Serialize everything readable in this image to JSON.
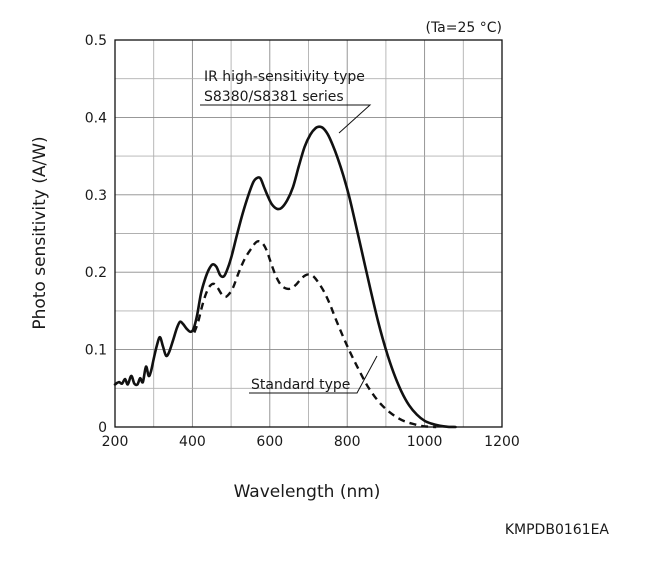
{
  "chart_data": {
    "type": "line",
    "condition": "(Ta=25 °C)",
    "xlabel": "Wavelength (nm)",
    "ylabel": "Photo sensitivity (A/W)",
    "xlim": [
      200,
      1200
    ],
    "ylim": [
      0,
      0.5
    ],
    "x_ticks": [
      "200",
      "400",
      "600",
      "800",
      "1000",
      "1200"
    ],
    "y_ticks": [
      "0",
      "0.1",
      "0.2",
      "0.3",
      "0.4",
      "0.5"
    ],
    "grid": true,
    "series": [
      {
        "name": "IR high-sensitivity type S8380/S8381 series",
        "style": "solid",
        "color": "#111111",
        "points": [
          [
            200,
            0.055
          ],
          [
            210,
            0.058
          ],
          [
            218,
            0.056
          ],
          [
            226,
            0.062
          ],
          [
            233,
            0.055
          ],
          [
            242,
            0.066
          ],
          [
            250,
            0.056
          ],
          [
            258,
            0.055
          ],
          [
            265,
            0.063
          ],
          [
            272,
            0.058
          ],
          [
            280,
            0.078
          ],
          [
            287,
            0.066
          ],
          [
            293,
            0.072
          ],
          [
            300,
            0.088
          ],
          [
            308,
            0.105
          ],
          [
            316,
            0.116
          ],
          [
            324,
            0.104
          ],
          [
            332,
            0.092
          ],
          [
            340,
            0.097
          ],
          [
            350,
            0.112
          ],
          [
            360,
            0.128
          ],
          [
            368,
            0.136
          ],
          [
            376,
            0.133
          ],
          [
            385,
            0.127
          ],
          [
            395,
            0.123
          ],
          [
            403,
            0.127
          ],
          [
            412,
            0.144
          ],
          [
            422,
            0.172
          ],
          [
            432,
            0.19
          ],
          [
            442,
            0.203
          ],
          [
            452,
            0.21
          ],
          [
            462,
            0.207
          ],
          [
            472,
            0.196
          ],
          [
            482,
            0.195
          ],
          [
            492,
            0.206
          ],
          [
            502,
            0.222
          ],
          [
            515,
            0.248
          ],
          [
            530,
            0.276
          ],
          [
            545,
            0.3
          ],
          [
            558,
            0.317
          ],
          [
            568,
            0.322
          ],
          [
            576,
            0.321
          ],
          [
            585,
            0.31
          ],
          [
            595,
            0.298
          ],
          [
            605,
            0.288
          ],
          [
            618,
            0.282
          ],
          [
            630,
            0.283
          ],
          [
            645,
            0.293
          ],
          [
            660,
            0.31
          ],
          [
            675,
            0.337
          ],
          [
            690,
            0.362
          ],
          [
            705,
            0.378
          ],
          [
            718,
            0.386
          ],
          [
            728,
            0.388
          ],
          [
            738,
            0.386
          ],
          [
            750,
            0.378
          ],
          [
            762,
            0.365
          ],
          [
            775,
            0.348
          ],
          [
            790,
            0.325
          ],
          [
            805,
            0.298
          ],
          [
            820,
            0.266
          ],
          [
            840,
            0.222
          ],
          [
            860,
            0.178
          ],
          [
            880,
            0.136
          ],
          [
            900,
            0.1
          ],
          [
            920,
            0.07
          ],
          [
            940,
            0.046
          ],
          [
            960,
            0.028
          ],
          [
            980,
            0.016
          ],
          [
            1000,
            0.008
          ],
          [
            1020,
            0.004
          ],
          [
            1040,
            0.0015
          ],
          [
            1060,
            0.0003
          ],
          [
            1080,
            0
          ]
        ]
      },
      {
        "name": "Standard type",
        "style": "dashed",
        "color": "#111111",
        "points": [
          [
            405,
            0.122
          ],
          [
            415,
            0.136
          ],
          [
            425,
            0.156
          ],
          [
            435,
            0.172
          ],
          [
            445,
            0.182
          ],
          [
            455,
            0.185
          ],
          [
            465,
            0.18
          ],
          [
            475,
            0.172
          ],
          [
            485,
            0.168
          ],
          [
            495,
            0.172
          ],
          [
            505,
            0.18
          ],
          [
            520,
            0.2
          ],
          [
            535,
            0.217
          ],
          [
            550,
            0.229
          ],
          [
            563,
            0.238
          ],
          [
            572,
            0.24
          ],
          [
            582,
            0.237
          ],
          [
            592,
            0.228
          ],
          [
            603,
            0.212
          ],
          [
            615,
            0.196
          ],
          [
            628,
            0.184
          ],
          [
            642,
            0.179
          ],
          [
            655,
            0.179
          ],
          [
            668,
            0.184
          ],
          [
            680,
            0.191
          ],
          [
            692,
            0.196
          ],
          [
            702,
            0.197
          ],
          [
            712,
            0.195
          ],
          [
            725,
            0.187
          ],
          [
            740,
            0.175
          ],
          [
            755,
            0.159
          ],
          [
            770,
            0.14
          ],
          [
            790,
            0.116
          ],
          [
            810,
            0.094
          ],
          [
            830,
            0.074
          ],
          [
            850,
            0.055
          ],
          [
            870,
            0.04
          ],
          [
            890,
            0.028
          ],
          [
            910,
            0.019
          ],
          [
            930,
            0.012
          ],
          [
            950,
            0.007
          ],
          [
            970,
            0.004
          ],
          [
            990,
            0.0015
          ],
          [
            1010,
            0.0005
          ],
          [
            1030,
            0
          ]
        ]
      }
    ],
    "annotations": [
      {
        "lines": [
          "IR high-sensitivity type",
          "S8380/S8381 series"
        ],
        "target_series": 0
      },
      {
        "lines": [
          "Standard type"
        ],
        "target_series": 1
      }
    ],
    "footer_code": "KMPDB0161EA"
  }
}
